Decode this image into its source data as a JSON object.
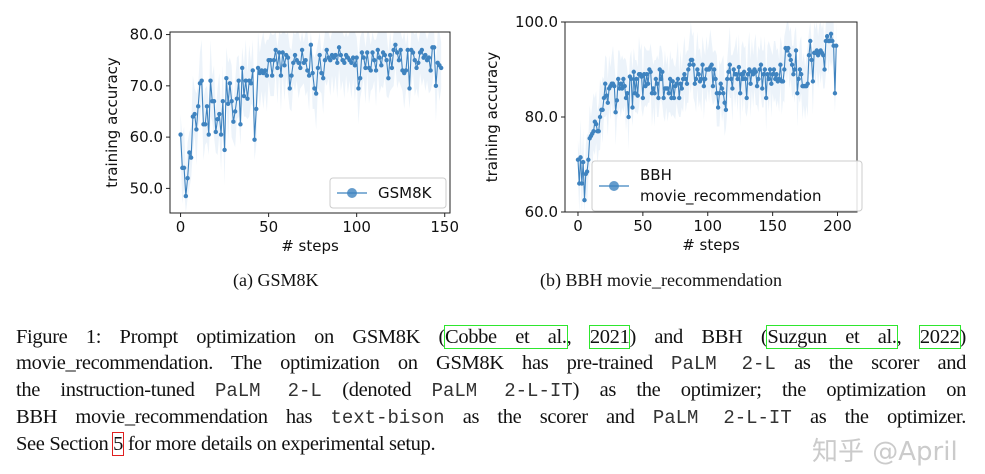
{
  "chart_data": [
    {
      "type": "line",
      "xlabel": "# steps",
      "ylabel": "training accuracy",
      "xlim": [
        -6,
        153
      ],
      "ylim": [
        45.2,
        80.5
      ],
      "xticks": [
        "0",
        "50",
        "100",
        "150"
      ],
      "yticks": [
        "50.0",
        "60.0",
        "70.0",
        "80.0"
      ],
      "legend": "lower-right",
      "grid": false,
      "color": "#3f83bf",
      "band_color": "#dce9f6",
      "series": [
        {
          "name": "GSM8K",
          "values": [
            60.5,
            54,
            54,
            48.5,
            52,
            57,
            56,
            64,
            64.5,
            61.5,
            66,
            70.5,
            71,
            62.5,
            62.5,
            66,
            60.5,
            71,
            67,
            67,
            61,
            63.5,
            64.5,
            60.5,
            67,
            57.5,
            71.5,
            66.5,
            70.5,
            67,
            63,
            65,
            67.5,
            71,
            62.5,
            73.5,
            68,
            71,
            67.5,
            71,
            70.5,
            73,
            59.5,
            65.5,
            73.5,
            72.5,
            73,
            72.5,
            73,
            72,
            75,
            75,
            72,
            75,
            77,
            73.5,
            76.5,
            72,
            76.5,
            74,
            76,
            75.5,
            69.5,
            72,
            74.5,
            76,
            75,
            74.5,
            73.5,
            77,
            74.5,
            75,
            73,
            72,
            78,
            72.5,
            69.5,
            68.5,
            73.5,
            76,
            72.5,
            71.5,
            75,
            77,
            75.5,
            75,
            76,
            75.5,
            76,
            74.5,
            77.5,
            76,
            75,
            74.5,
            76,
            75.5,
            75,
            74.5,
            75.5,
            74,
            75.5,
            69.5,
            71.5,
            76.5,
            75.5,
            73.5,
            76.5,
            73.5,
            73,
            76.5,
            75,
            73,
            77,
            75.5,
            74,
            76.5,
            76,
            75,
            71.5,
            76,
            73.5,
            77,
            78,
            76.5,
            75,
            77,
            73,
            72.5,
            73,
            77,
            69.5,
            77,
            76.5,
            75,
            73.5,
            74.5,
            76.5,
            77,
            75.5,
            76,
            75,
            75.5,
            73,
            77.5,
            77.5,
            70,
            74.5,
            74,
            73.5
          ]
        }
      ],
      "subcaption": "(a) GSM8K"
    },
    {
      "type": "line",
      "xlabel": "# steps",
      "ylabel": "training accuracy",
      "xlim": [
        -10,
        215
      ],
      "ylim": [
        60,
        100
      ],
      "xticks": [
        "0",
        "50",
        "100",
        "150",
        "200"
      ],
      "yticks": [
        "60.0",
        "80.0",
        "100.0"
      ],
      "legend": "lower-right",
      "grid": false,
      "color": "#3f83bf",
      "band_color": "#dce9f6",
      "series": [
        {
          "name": "BBH movie_recommendation",
          "name_lines": [
            "BBH",
            "movie_recommendation"
          ],
          "values": [
            71,
            66,
            71.5,
            66,
            70.5,
            62.5,
            68,
            68.5,
            71,
            75.5,
            76,
            76.5,
            77,
            79,
            78.5,
            77,
            77,
            80,
            81.5,
            81.5,
            84,
            87,
            84.5,
            83,
            86,
            86.5,
            87,
            87,
            86.5,
            81,
            83.5,
            88,
            86,
            87,
            86,
            88,
            86.5,
            84,
            85,
            80,
            88.5,
            88,
            82,
            89.5,
            85,
            88,
            84.5,
            89,
            89,
            88.5,
            84,
            89,
            86.5,
            89,
            87,
            90,
            89.5,
            85,
            86,
            85,
            88,
            87,
            84,
            90,
            88,
            89.5,
            84,
            86,
            86,
            86,
            85,
            88,
            84,
            87.5,
            84,
            86.5,
            87,
            88,
            84,
            87,
            86,
            88,
            89,
            88,
            87,
            90,
            91,
            92,
            92,
            91,
            87,
            88,
            90,
            89,
            87.5,
            88,
            91,
            86.5,
            88,
            90,
            90,
            90,
            90.5,
            91,
            86.5,
            90,
            88,
            85,
            82,
            85,
            87,
            86,
            85,
            83,
            81.5,
            88,
            89.5,
            91,
            88,
            86,
            90,
            89,
            89,
            88,
            90.5,
            85,
            89,
            88,
            89.5,
            88,
            84,
            89,
            90,
            87,
            89.5,
            89,
            90,
            89.5,
            86.5,
            88,
            90,
            91,
            86,
            89,
            90,
            84,
            89,
            88,
            90,
            87,
            89,
            90,
            88,
            89,
            87.5,
            88,
            91,
            87.5,
            87.5,
            90,
            94.5,
            94,
            94.5,
            93,
            92,
            91,
            89,
            90,
            94,
            85,
            88,
            90,
            89,
            86.5,
            86.5,
            86.5,
            86.5,
            87,
            93,
            96,
            92,
            87.5,
            93.5,
            93.5,
            94,
            93,
            93.5,
            94,
            93.5,
            93,
            90,
            96,
            97,
            96,
            96,
            97.5,
            96,
            95,
            85,
            95
          ]
        }
      ],
      "subcaption": "(b) BBH movie_recommendation"
    }
  ],
  "caption": {
    "l1": {
      "a": "Figure 1:  Prompt optimization on GSM8K (",
      "c1": "Cobbe et al.",
      "s1": ", ",
      "c2": "2021",
      "b": ") and BBH (",
      "c3": "Suzgun et al.",
      "s2": ", ",
      "c4": "2022",
      "e": ")"
    },
    "l2": {
      "a": "movie_recommendation. The optimization on GSM8K has pre-trained ",
      "m1": "PaLM 2-L",
      "b": " as the scorer and"
    },
    "l3": {
      "a": "the instruction-tuned ",
      "m1": "PaLM 2-L",
      "b": " (denoted ",
      "m2": "PaLM 2-L-IT",
      "c": ") as the optimizer; the optimization on"
    },
    "l4": {
      "a": "BBH movie_recommendation has ",
      "m1": "text-bison",
      "b": " as the scorer and ",
      "m2": "PaLM 2-L-IT",
      "c": " as the optimizer."
    },
    "l5": {
      "a": "See Section ",
      "ref": "5",
      "b": " for more details on experimental setup."
    }
  },
  "watermark": "知乎 @April"
}
